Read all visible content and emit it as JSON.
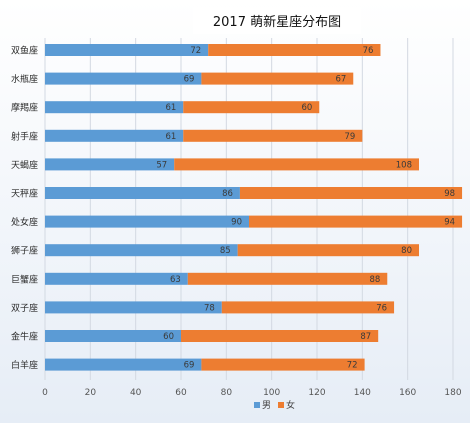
{
  "chart_data": {
    "type": "bar",
    "orientation": "horizontal",
    "stacked": true,
    "title": "2017 萌新星座分布图",
    "categories": [
      "双鱼座",
      "水瓶座",
      "摩羯座",
      "射手座",
      "天蝎座",
      "天秤座",
      "处女座",
      "狮子座",
      "巨蟹座",
      "双子座",
      "金牛座",
      "白羊座"
    ],
    "series": [
      {
        "name": "男",
        "color": "#5b9bd5",
        "values": [
          72,
          69,
          61,
          61,
          57,
          86,
          90,
          85,
          63,
          78,
          60,
          69
        ]
      },
      {
        "name": "女",
        "color": "#ed7d31",
        "values": [
          76,
          67,
          60,
          79,
          108,
          98,
          94,
          80,
          88,
          76,
          87,
          72
        ]
      }
    ],
    "xlim": [
      0,
      180
    ],
    "xticks": [
      0,
      20,
      40,
      60,
      80,
      100,
      120,
      140,
      160,
      180
    ],
    "grid": true,
    "legend": "bottom"
  }
}
